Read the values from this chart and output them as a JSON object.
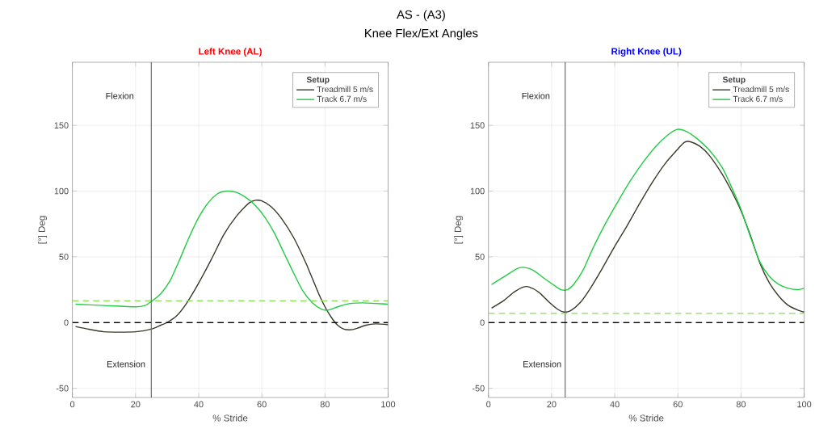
{
  "chart_data": [
    {
      "type": "other",
      "title": "AS - (A3)",
      "subtitle": "Knee Flex/Ext Angles"
    },
    {
      "type": "line",
      "title": "Left Knee (AL)",
      "xlabel": "% Stride",
      "ylabel": "[°] Deg",
      "legend_title": "Setup",
      "legend": "top right",
      "grid": true,
      "xlim": [
        0,
        100
      ],
      "ylim": [
        -57,
        198
      ],
      "xticks": [
        0,
        20,
        40,
        60,
        80,
        100
      ],
      "yticks": [
        -50,
        0,
        50,
        100,
        150
      ],
      "annotations": [
        "Flexion",
        "Extension"
      ],
      "ref_lines": [
        {
          "axis": "x",
          "value": 25,
          "color": "#666666",
          "line_style": "solid"
        },
        {
          "axis": "y",
          "value": 0,
          "color": "#000000",
          "line_style": "dashed"
        },
        {
          "axis": "y",
          "value": 16.5,
          "color": "#88dd55",
          "line_style": "dashed"
        }
      ],
      "series": [
        {
          "name": "Treadmill 5 m/s",
          "color": "#3a3a2a",
          "x": [
            1,
            5,
            10,
            15,
            20,
            25,
            28,
            30,
            33,
            36,
            40,
            44,
            48,
            52,
            56,
            58,
            60,
            63,
            66,
            70,
            74,
            78,
            80,
            82,
            84,
            86,
            88,
            90,
            93,
            96,
            100
          ],
          "values": [
            -3,
            -5,
            -7,
            -7.3,
            -7,
            -5,
            -2,
            0,
            5,
            14,
            30,
            48,
            67,
            81,
            91,
            93,
            92.5,
            88,
            80,
            65,
            45,
            22,
            12,
            4,
            -2,
            -5,
            -5.5,
            -4.5,
            -2,
            -1,
            -1.5
          ]
        },
        {
          "name": "Track 6.7 m/s",
          "color": "#22cc44",
          "x": [
            1,
            10,
            20,
            23,
            25,
            28,
            31,
            34,
            37,
            40,
            43,
            46,
            49,
            52,
            55,
            58,
            61,
            64,
            67,
            70,
            73,
            76,
            79,
            81,
            84,
            88,
            92,
            96,
            100
          ],
          "values": [
            14,
            13,
            12,
            13,
            16,
            22,
            32,
            48,
            65,
            80,
            91,
            98,
            100,
            99,
            95,
            89,
            80,
            68,
            53,
            38,
            24,
            15,
            10,
            9.5,
            12,
            14.5,
            15,
            14.5,
            14
          ]
        }
      ]
    },
    {
      "type": "line",
      "title": "Right Knee (UL)",
      "xlabel": "% Stride",
      "ylabel": "[°] Deg",
      "legend_title": "Setup",
      "legend": "top right",
      "grid": true,
      "xlim": [
        0,
        100
      ],
      "ylim": [
        -57,
        198
      ],
      "xticks": [
        0,
        20,
        40,
        60,
        80,
        100
      ],
      "yticks": [
        -50,
        0,
        50,
        100,
        150
      ],
      "annotations": [
        "Flexion",
        "Extension"
      ],
      "ref_lines": [
        {
          "axis": "x",
          "value": 24.3,
          "color": "#666666",
          "line_style": "solid"
        },
        {
          "axis": "y",
          "value": 0,
          "color": "#000000",
          "line_style": "dashed"
        },
        {
          "axis": "y",
          "value": 7,
          "color": "#88dd55",
          "line_style": "dashed"
        }
      ],
      "series": [
        {
          "name": "Treadmill 5 m/s",
          "color": "#3a3a2a",
          "x": [
            1,
            5,
            8,
            11,
            13,
            16,
            19,
            22,
            24,
            26,
            29,
            32,
            36,
            40,
            44,
            48,
            52,
            56,
            60,
            62,
            64,
            67,
            70,
            74,
            77,
            80,
            83,
            86,
            89,
            92,
            95,
            98,
            100
          ],
          "values": [
            11,
            17,
            23,
            27,
            27,
            23,
            16,
            10,
            8,
            9,
            15,
            25,
            41,
            58,
            74,
            91,
            107,
            121,
            132,
            137,
            137.5,
            134,
            127,
            113,
            100,
            85,
            66,
            45,
            30,
            20,
            13,
            9.5,
            8
          ]
        },
        {
          "name": "Track 6.7 m/s",
          "color": "#22cc44",
          "x": [
            1,
            5,
            9,
            11,
            14,
            18,
            21,
            23,
            25,
            27,
            30,
            33,
            37,
            41,
            45,
            49,
            53,
            57,
            60,
            63,
            66,
            70,
            74,
            77,
            80,
            83,
            86,
            89,
            92,
            95,
            98,
            100
          ],
          "values": [
            29,
            35,
            41,
            42,
            40,
            33,
            28,
            25,
            25,
            29,
            40,
            56,
            75,
            92,
            108,
            122,
            134,
            143,
            147,
            145,
            140,
            131,
            118,
            103,
            86,
            65,
            46,
            35,
            29,
            26,
            25,
            26
          ]
        }
      ]
    }
  ]
}
